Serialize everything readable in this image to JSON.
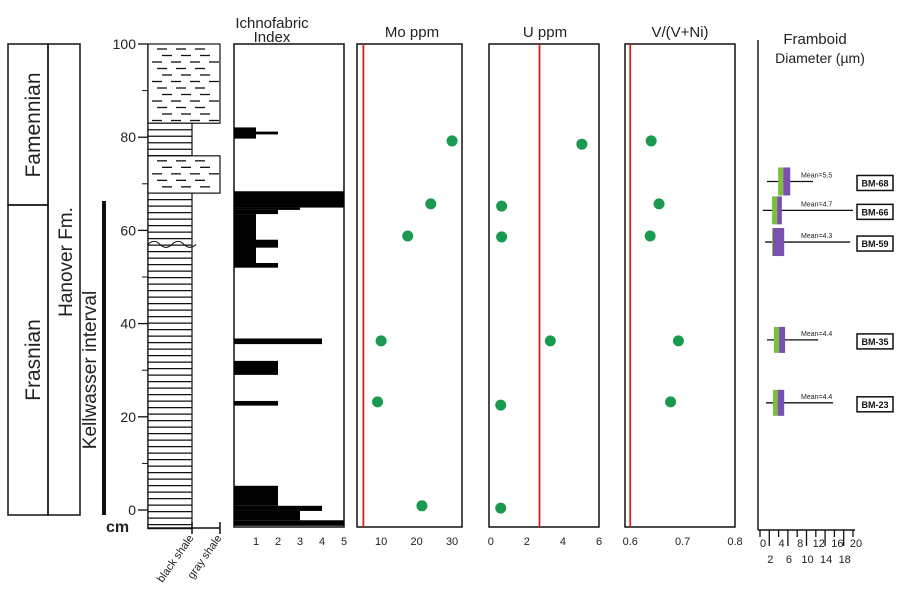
{
  "labels": {
    "stage_upper": "Famennian",
    "stage_lower": "Frasnian",
    "formation": "Hanover Fm.",
    "interval": "Kellwasser interval",
    "depth_unit": "cm",
    "litho_black": "black shale",
    "litho_gray": "gray shale",
    "ichno_title_1": "Ichnofabric",
    "ichno_title_2": "Index",
    "mo_title": "Mo ppm",
    "u_title": "U ppm",
    "v_title": "V/(V+Ni)",
    "framboid_title_1": "Framboid",
    "framboid_title_2": "Diameter (µm)"
  },
  "colors": {
    "dot": "#1a9a4f",
    "threshold": "#d42020",
    "box_low": "#7cbf3a",
    "box_high": "#7a4fb0"
  },
  "chart_data": [
    {
      "type": "stratigraphic_column",
      "ylabel": "cm",
      "ylim": [
        -4,
        100
      ],
      "yticks": [
        0,
        20,
        40,
        60,
        80,
        100
      ],
      "lithology": [
        {
          "top": 100,
          "bottom": 83,
          "rock": "gray shale"
        },
        {
          "top": 83,
          "bottom": 76,
          "rock": "black shale"
        },
        {
          "top": 76,
          "bottom": 68,
          "rock": "gray shale"
        },
        {
          "top": 68,
          "bottom": -4,
          "rock": "black shale"
        }
      ],
      "stages": [
        {
          "name": "Famennian",
          "top": 100,
          "bottom": 66
        },
        {
          "name": "Frasnian",
          "top": 66,
          "bottom": -1
        }
      ],
      "kellwasser_interval": {
        "top": 66,
        "bottom": -1
      },
      "erosional_surface_depth": 57
    },
    {
      "type": "bar",
      "title": "Ichnofabric Index",
      "xlim": [
        0,
        5
      ],
      "xticks": [
        1,
        2,
        3,
        4,
        5
      ],
      "intervals": [
        {
          "top": 82.1,
          "bottom": 79.7,
          "value": 1
        },
        {
          "top": 81.2,
          "bottom": 80.6,
          "value": 2
        },
        {
          "top": 68.4,
          "bottom": 64.9,
          "value": 5
        },
        {
          "top": 64.9,
          "bottom": 64.4,
          "value": 3
        },
        {
          "top": 64.4,
          "bottom": 63.5,
          "value": 2
        },
        {
          "top": 63.5,
          "bottom": 52.4,
          "value": 1
        },
        {
          "top": 58.0,
          "bottom": 56.3,
          "value": 2
        },
        {
          "top": 53.0,
          "bottom": 52.0,
          "value": 2
        },
        {
          "top": 36.8,
          "bottom": 35.6,
          "value": 4
        },
        {
          "top": 32.0,
          "bottom": 29.0,
          "value": 2
        },
        {
          "top": 23.4,
          "bottom": 22.4,
          "value": 2
        },
        {
          "top": 5.2,
          "bottom": 0.9,
          "value": 2
        },
        {
          "top": 0.9,
          "bottom": -0.2,
          "value": 4
        },
        {
          "top": -0.2,
          "bottom": -2.2,
          "value": 3
        },
        {
          "top": -2.2,
          "bottom": -3.4,
          "value": 5
        }
      ]
    },
    {
      "type": "scatter",
      "title": "Mo ppm",
      "xlim": [
        3.2,
        32.8
      ],
      "xticks": [
        10,
        20,
        30
      ],
      "threshold": 5,
      "points": [
        {
          "x": 30,
          "depth": 79.2
        },
        {
          "x": 24,
          "depth": 65.7
        },
        {
          "x": 17.5,
          "depth": 58.8
        },
        {
          "x": 10,
          "depth": 36.3
        },
        {
          "x": 9,
          "depth": 23.2
        },
        {
          "x": 21.5,
          "depth": 0.9
        }
      ]
    },
    {
      "type": "scatter",
      "title": "U ppm",
      "xlim": [
        -0.1,
        6
      ],
      "xticks": [
        0,
        2,
        4,
        6
      ],
      "threshold": 2.7,
      "points": [
        {
          "x": 5.05,
          "depth": 78.5
        },
        {
          "x": 0.6,
          "depth": 65.2
        },
        {
          "x": 0.6,
          "depth": 58.6
        },
        {
          "x": 3.3,
          "depth": 36.3
        },
        {
          "x": 0.55,
          "depth": 22.5
        },
        {
          "x": 0.55,
          "depth": 0.4
        }
      ]
    },
    {
      "type": "scatter",
      "title": "V/(V+Ni)",
      "xlim": [
        0.59,
        0.8
      ],
      "xticks": [
        0.6,
        0.7,
        0.8
      ],
      "threshold": 0.6,
      "points": [
        {
          "x": 0.64,
          "depth": 79.2
        },
        {
          "x": 0.655,
          "depth": 65.7
        },
        {
          "x": 0.638,
          "depth": 58.8
        },
        {
          "x": 0.692,
          "depth": 36.3
        },
        {
          "x": 0.677,
          "depth": 23.2
        }
      ]
    },
    {
      "type": "boxplot",
      "title": "Framboid Diameter (µm)",
      "xlim": [
        0,
        20
      ],
      "xticks_top": [
        0,
        4,
        8,
        12,
        16,
        20
      ],
      "xticks_bottom": [
        2,
        6,
        10,
        14,
        18
      ],
      "samples": [
        {
          "id": "BM-68",
          "depth": 70.5,
          "min": 1.5,
          "q1": 3.9,
          "median": 5.0,
          "q3": 6.5,
          "max": 11.4,
          "mean_label": "Mean=5.5"
        },
        {
          "id": "BM-66",
          "depth": 64.3,
          "min": 0.6,
          "q1": 2.6,
          "median": 3.7,
          "q3": 4.7,
          "max": 20,
          "mean_label": "Mean=4.7"
        },
        {
          "id": "BM-59",
          "depth": 57.5,
          "min": 1.1,
          "q1": 2.6,
          "median": 2.8,
          "q3": 5.2,
          "max": 19.4,
          "mean_label": "Mean=4.3"
        },
        {
          "id": "BM-35",
          "depth": 36.5,
          "min": 1.5,
          "q1": 3.0,
          "median": 4.1,
          "q3": 5.4,
          "max": 12.5,
          "mean_label": "Mean=4.4"
        },
        {
          "id": "BM-23",
          "depth": 23.0,
          "min": 1.3,
          "q1": 2.8,
          "median": 3.8,
          "q3": 5.2,
          "max": 15.7,
          "mean_label": "Mean=4.4"
        }
      ]
    }
  ]
}
